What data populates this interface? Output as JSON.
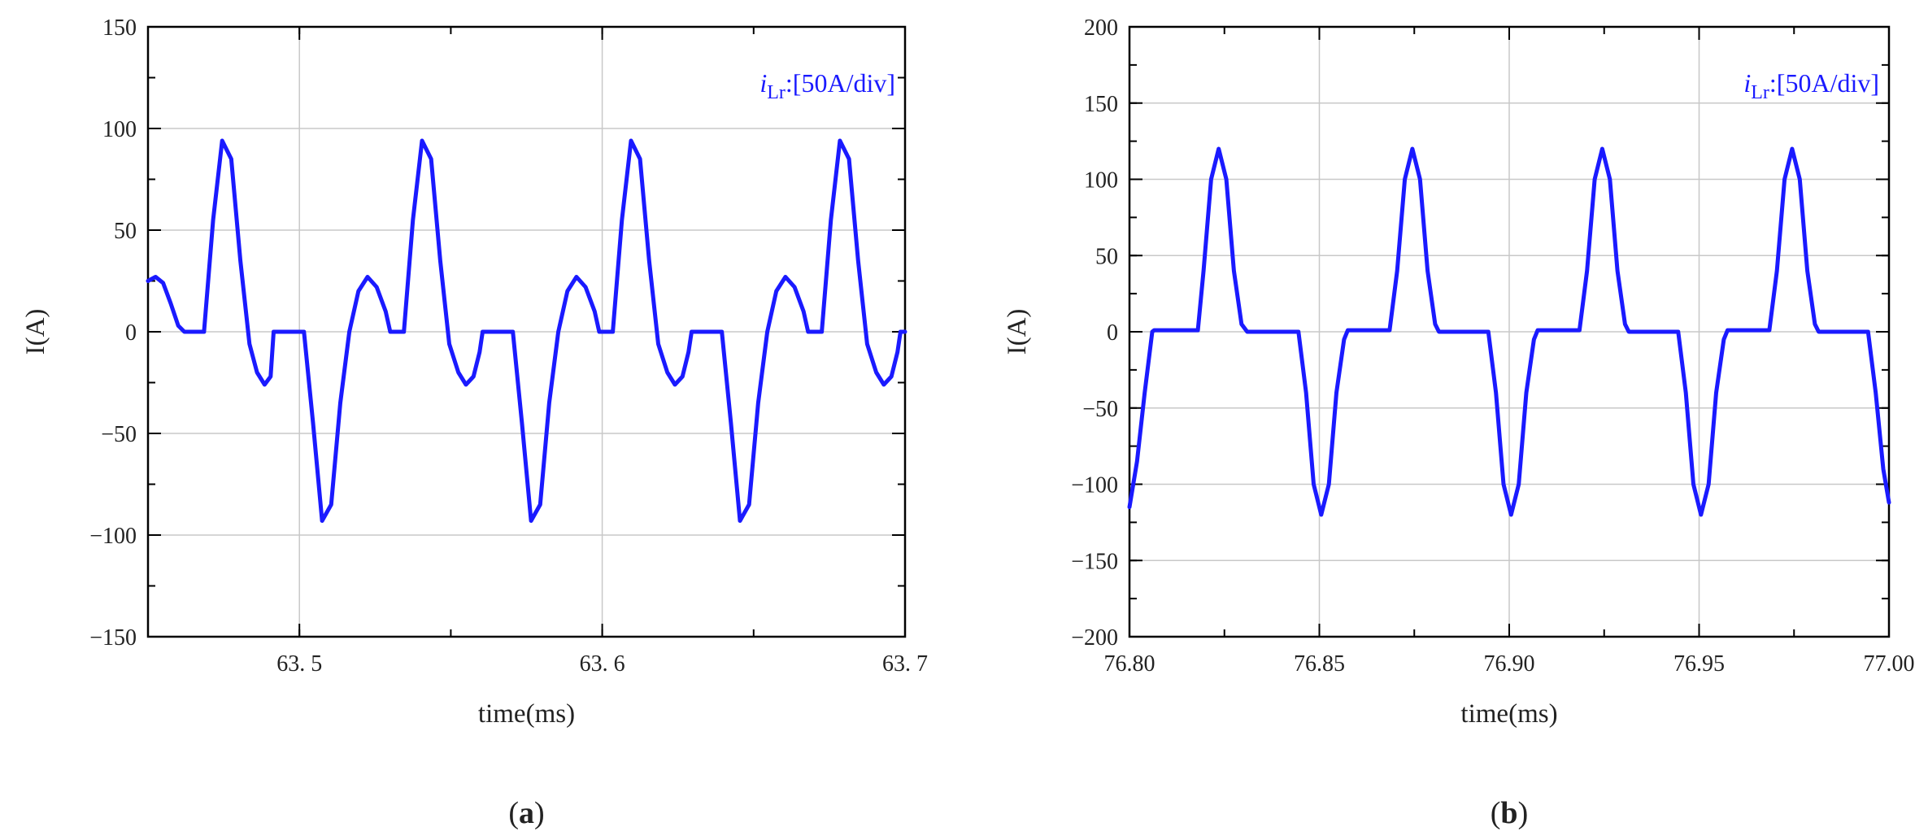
{
  "colors": {
    "series": "#1a1aff",
    "grid": "#c8c8c8",
    "axis": "#000000"
  },
  "chart_data": [
    {
      "type": "line",
      "panel_label": "a",
      "xlabel": "time(ms)",
      "ylabel": "I(A)",
      "annotation": {
        "var": "i",
        "sub": "Lr",
        "text": ":[50A/div]"
      },
      "xlim": [
        63.45,
        63.7
      ],
      "ylim": [
        -150,
        150
      ],
      "x_ticks": [
        63.5,
        63.6,
        63.7
      ],
      "x_tick_labels": [
        "63. 5",
        "63. 6",
        "63. 7"
      ],
      "y_ticks": [
        -150,
        -100,
        -50,
        0,
        50,
        100,
        150
      ],
      "y_tick_labels": [
        "−150",
        "−100",
        "−50",
        "0",
        "50",
        "100",
        "150"
      ],
      "grid": true,
      "series": [
        {
          "x": [
            63.45,
            63.4525,
            63.455,
            63.4575,
            63.46,
            63.462,
            63.464,
            63.466,
            63.4685,
            63.4715,
            63.4745,
            63.4775,
            63.4805,
            63.4835,
            63.486,
            63.4885,
            63.4905,
            63.4915,
            63.5,
            63.5015,
            63.5045,
            63.5075,
            63.5105,
            63.5135,
            63.5165,
            63.5195,
            63.5225,
            63.5255,
            63.5285,
            63.53,
            63.5325,
            63.5345,
            63.5375,
            63.5405,
            63.5435,
            63.5465,
            63.5495,
            63.5525,
            63.555,
            63.5575,
            63.5595,
            63.5605,
            63.569,
            63.5705,
            63.5735,
            63.5765,
            63.5795,
            63.5825,
            63.5855,
            63.5885,
            63.5915,
            63.5945,
            63.5975,
            63.599,
            63.6015,
            63.6035,
            63.6065,
            63.6095,
            63.6125,
            63.6155,
            63.6185,
            63.6215,
            63.624,
            63.6265,
            63.6285,
            63.6295,
            63.638,
            63.6395,
            63.6425,
            63.6455,
            63.6485,
            63.6515,
            63.6545,
            63.6575,
            63.6605,
            63.6635,
            63.6665,
            63.668,
            63.6705,
            63.6725,
            63.6755,
            63.6785,
            63.6815,
            63.6845,
            63.6875,
            63.6905,
            63.693,
            63.6955,
            63.6975,
            63.6985,
            63.7
          ],
          "y": [
            25,
            27,
            24,
            14,
            3,
            0,
            0,
            0,
            0,
            55,
            94,
            85,
            35,
            -6,
            -20,
            -26,
            -22,
            0,
            0,
            0,
            -45,
            -93,
            -85,
            -35,
            0,
            20,
            27,
            22,
            10,
            0,
            0,
            0,
            55,
            94,
            85,
            35,
            -6,
            -20,
            -26,
            -22,
            -10,
            0,
            0,
            0,
            -45,
            -93,
            -85,
            -35,
            0,
            20,
            27,
            22,
            10,
            0,
            0,
            0,
            55,
            94,
            85,
            35,
            -6,
            -20,
            -26,
            -22,
            -10,
            0,
            0,
            0,
            -45,
            -93,
            -85,
            -35,
            0,
            20,
            27,
            22,
            10,
            0,
            0,
            0,
            55,
            94,
            85,
            35,
            -6,
            -20,
            -26,
            -22,
            -10,
            0,
            0
          ]
        }
      ]
    },
    {
      "type": "line",
      "panel_label": "b",
      "xlabel": "time(ms)",
      "ylabel": "I(A)",
      "annotation": {
        "var": "i",
        "sub": "Lr",
        "text": ":[50A/div]"
      },
      "xlim": [
        76.8,
        77.0
      ],
      "ylim": [
        -200,
        200
      ],
      "x_ticks": [
        76.8,
        76.85,
        76.9,
        76.95,
        77.0
      ],
      "x_tick_labels": [
        "76.80",
        "76.85",
        "76.90",
        "76.95",
        "77.00"
      ],
      "y_ticks": [
        -200,
        -150,
        -100,
        -50,
        0,
        50,
        100,
        150,
        200
      ],
      "y_tick_labels": [
        "−200",
        "−150",
        "−100",
        "−50",
        "0",
        "50",
        "100",
        "150",
        "200"
      ],
      "grid": true,
      "series": [
        {
          "x": [
            76.8,
            76.802,
            76.804,
            76.806,
            76.8065,
            76.818,
            76.8195,
            76.8215,
            76.8235,
            76.8255,
            76.8275,
            76.8295,
            76.831,
            76.8445,
            76.8465,
            76.8485,
            76.8505,
            76.8525,
            76.8545,
            76.8565,
            76.8575,
            76.8685,
            76.8705,
            76.8725,
            76.8745,
            76.8765,
            76.8785,
            76.8805,
            76.8815,
            76.8945,
            76.8965,
            76.8985,
            76.9005,
            76.9025,
            76.9045,
            76.9065,
            76.9075,
            76.9185,
            76.9205,
            76.9225,
            76.9245,
            76.9265,
            76.9285,
            76.9305,
            76.9315,
            76.9445,
            76.9465,
            76.9485,
            76.9505,
            76.9525,
            76.9545,
            76.9565,
            76.9575,
            76.9685,
            76.9705,
            76.9725,
            76.9745,
            76.9765,
            76.9785,
            76.9805,
            76.9815,
            76.9945,
            76.9965,
            76.9985,
            77.0
          ],
          "y": [
            -115,
            -85,
            -40,
            0,
            1,
            1,
            40,
            100,
            120,
            100,
            40,
            5,
            0,
            0,
            -40,
            -100,
            -120,
            -100,
            -40,
            -5,
            1,
            1,
            40,
            100,
            120,
            100,
            40,
            5,
            0,
            0,
            -40,
            -100,
            -120,
            -100,
            -40,
            -5,
            1,
            1,
            40,
            100,
            120,
            100,
            40,
            5,
            0,
            0,
            -40,
            -100,
            -120,
            -100,
            -40,
            -5,
            1,
            1,
            40,
            100,
            120,
            100,
            40,
            5,
            0,
            0,
            -40,
            -90,
            -112
          ]
        }
      ]
    }
  ]
}
